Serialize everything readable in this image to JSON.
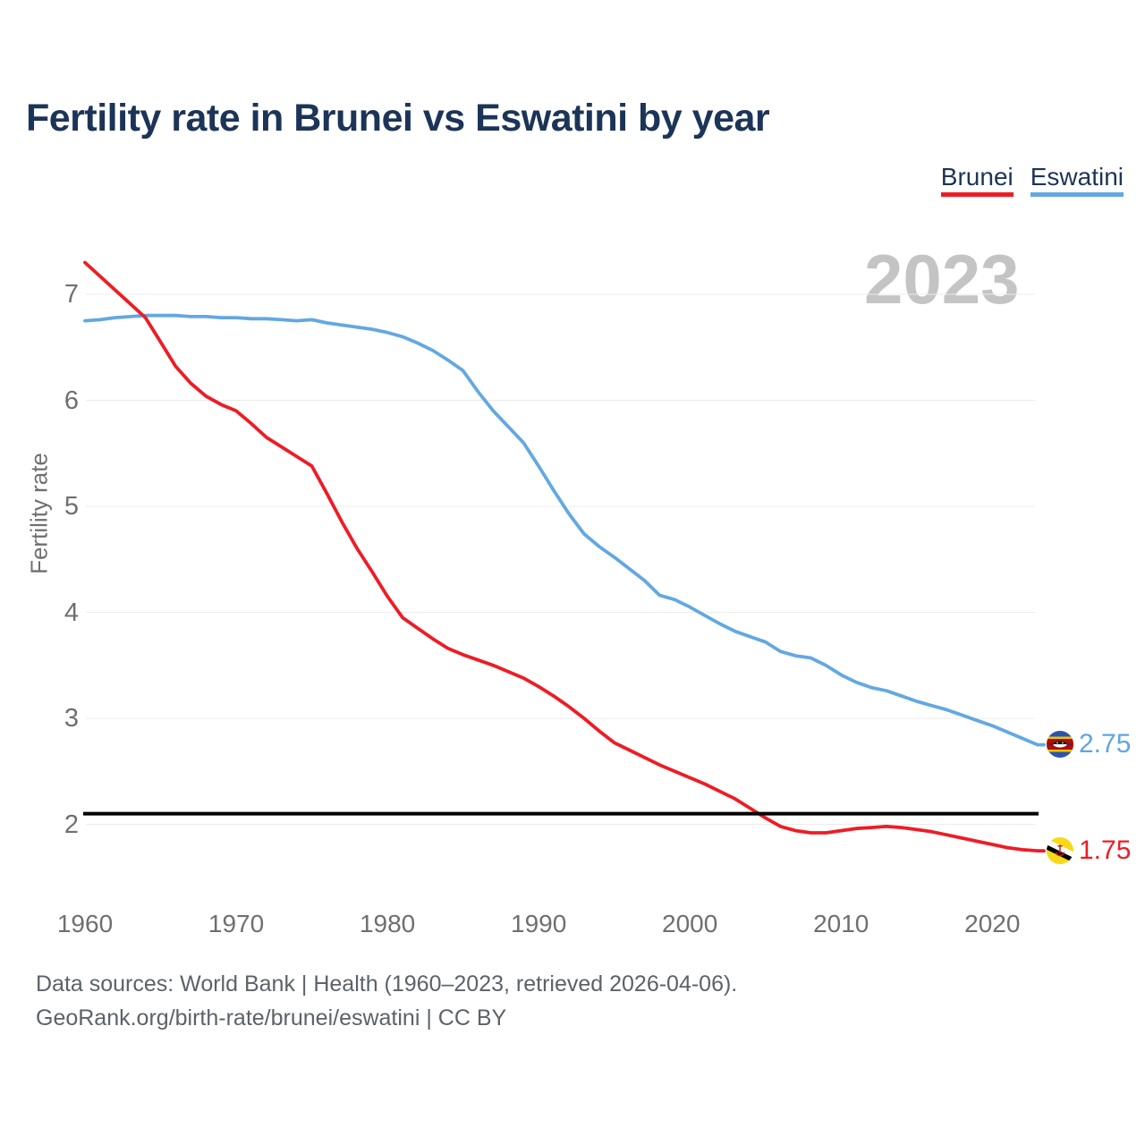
{
  "header": {
    "title": "Fertility rate in Brunei vs Eswatini by year"
  },
  "legend": {
    "items": [
      {
        "label": "Brunei",
        "color": "#ee1c25"
      },
      {
        "label": "Eswatini",
        "color": "#63a8e1"
      }
    ]
  },
  "watermark": "2023",
  "end_labels": {
    "eswatini": {
      "value": "2.75",
      "color": "#5fa5e3",
      "flag": "eswatini-flag"
    },
    "brunei": {
      "value": "1.75",
      "color": "#ee1c25",
      "flag": "brunei-flag"
    }
  },
  "footer": {
    "line1": "Data sources: World Bank | Health (1960–2023, retrieved 2026-04-06).",
    "line2": "GeoRank.org/birth-rate/brunei/eswatini | CC BY"
  },
  "chart_data": {
    "type": "line",
    "title": "Fertility rate in Brunei vs Eswatini by year",
    "xlabel": "",
    "ylabel": "Fertility rate",
    "xlim": [
      1960,
      2023
    ],
    "ylim": [
      1.55,
      7.45
    ],
    "x_ticks": [
      1960,
      1970,
      1980,
      1990,
      2000,
      2010,
      2020
    ],
    "y_ticks": [
      7,
      6,
      5,
      4,
      3,
      2
    ],
    "grid": "horizontal",
    "legend_position": "top-right",
    "reference_line": {
      "value": 2.1,
      "color": "#000000"
    },
    "x": [
      1960,
      1961,
      1962,
      1963,
      1964,
      1965,
      1966,
      1967,
      1968,
      1969,
      1970,
      1971,
      1972,
      1973,
      1974,
      1975,
      1976,
      1977,
      1978,
      1979,
      1980,
      1981,
      1982,
      1983,
      1984,
      1985,
      1986,
      1987,
      1988,
      1989,
      1990,
      1991,
      1992,
      1993,
      1994,
      1995,
      1996,
      1997,
      1998,
      1999,
      2000,
      2001,
      2002,
      2003,
      2004,
      2005,
      2006,
      2007,
      2008,
      2009,
      2010,
      2011,
      2012,
      2013,
      2014,
      2015,
      2016,
      2017,
      2018,
      2019,
      2020,
      2021,
      2022,
      2023
    ],
    "series": [
      {
        "name": "Brunei",
        "color": "#ee1c25",
        "values": [
          7.3,
          7.17,
          7.04,
          6.91,
          6.78,
          6.55,
          6.32,
          6.16,
          6.04,
          5.96,
          5.9,
          5.78,
          5.65,
          5.56,
          5.47,
          5.38,
          5.12,
          4.85,
          4.6,
          4.38,
          4.15,
          3.95,
          3.85,
          3.75,
          3.66,
          3.6,
          3.55,
          3.5,
          3.44,
          3.38,
          3.3,
          3.21,
          3.11,
          3.0,
          2.88,
          2.77,
          2.7,
          2.63,
          2.56,
          2.5,
          2.44,
          2.38,
          2.31,
          2.24,
          2.15,
          2.06,
          1.98,
          1.94,
          1.92,
          1.92,
          1.94,
          1.96,
          1.97,
          1.98,
          1.97,
          1.95,
          1.93,
          1.9,
          1.87,
          1.84,
          1.81,
          1.78,
          1.76,
          1.75
        ]
      },
      {
        "name": "Eswatini",
        "color": "#63a8e1",
        "values": [
          6.75,
          6.76,
          6.78,
          6.79,
          6.8,
          6.8,
          6.8,
          6.79,
          6.79,
          6.78,
          6.78,
          6.77,
          6.77,
          6.76,
          6.75,
          6.76,
          6.73,
          6.71,
          6.69,
          6.67,
          6.64,
          6.6,
          6.54,
          6.47,
          6.38,
          6.28,
          6.08,
          5.9,
          5.75,
          5.6,
          5.38,
          5.15,
          4.93,
          4.74,
          4.62,
          4.52,
          4.41,
          4.3,
          4.16,
          4.12,
          4.05,
          3.97,
          3.89,
          3.82,
          3.77,
          3.72,
          3.63,
          3.59,
          3.57,
          3.5,
          3.41,
          3.34,
          3.29,
          3.26,
          3.21,
          3.16,
          3.12,
          3.08,
          3.03,
          2.98,
          2.93,
          2.87,
          2.81,
          2.75
        ]
      }
    ]
  }
}
